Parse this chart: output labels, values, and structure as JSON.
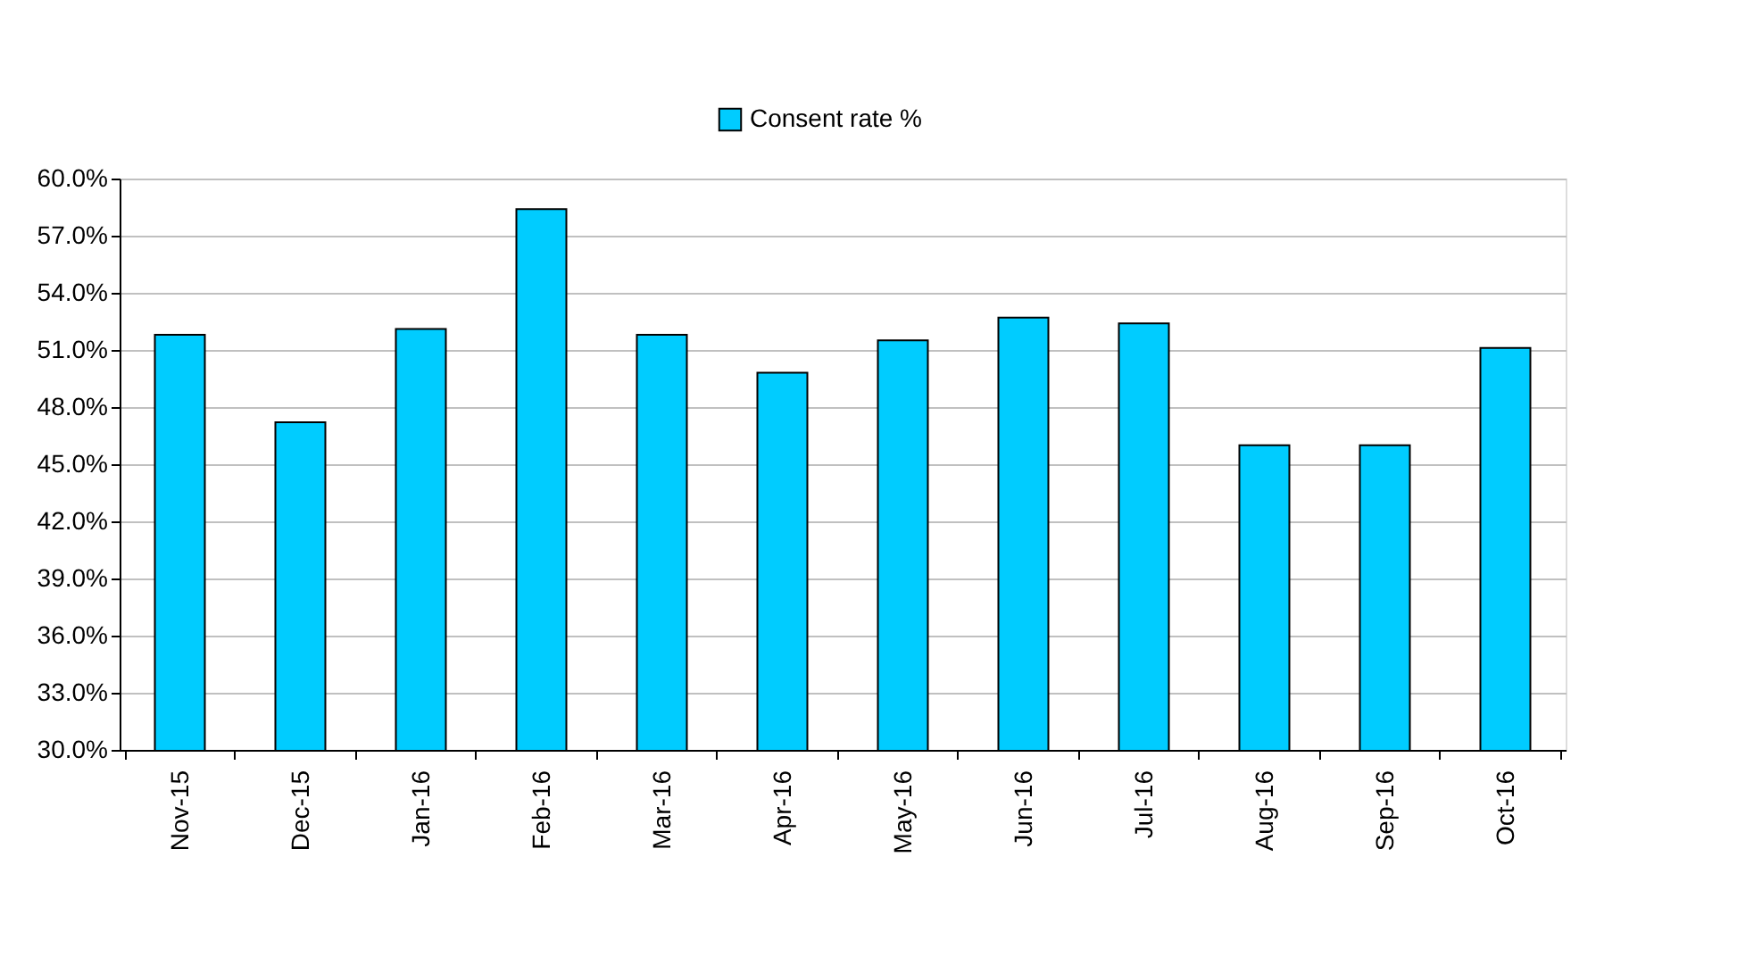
{
  "chart_data": {
    "type": "bar",
    "categories": [
      "Nov-15",
      "Dec-15",
      "Jan-16",
      "Feb-16",
      "Mar-16",
      "Apr-16",
      "May-16",
      "Jun-16",
      "Jul-16",
      "Aug-16",
      "Sep-16",
      "Oct-16"
    ],
    "series": [
      {
        "name": "Consent rate %",
        "color": "#00ccff",
        "values": [
          51.8,
          47.2,
          52.1,
          58.4,
          51.8,
          49.8,
          51.5,
          52.7,
          52.4,
          46.0,
          46.0,
          51.1
        ]
      }
    ],
    "ylim": [
      30,
      60
    ],
    "yticks": [
      {
        "value": 30,
        "label": "30.0%"
      },
      {
        "value": 33,
        "label": "33.0%"
      },
      {
        "value": 36,
        "label": "36.0%"
      },
      {
        "value": 39,
        "label": "39.0%"
      },
      {
        "value": 42,
        "label": "42.0%"
      },
      {
        "value": 45,
        "label": "45.0%"
      },
      {
        "value": 48,
        "label": "48.0%"
      },
      {
        "value": 51,
        "label": "51.0%"
      },
      {
        "value": 54,
        "label": "54.0%"
      },
      {
        "value": 57,
        "label": "57.0%"
      },
      {
        "value": 60,
        "label": "60.0%"
      }
    ],
    "grid": "y",
    "legend": "top"
  }
}
